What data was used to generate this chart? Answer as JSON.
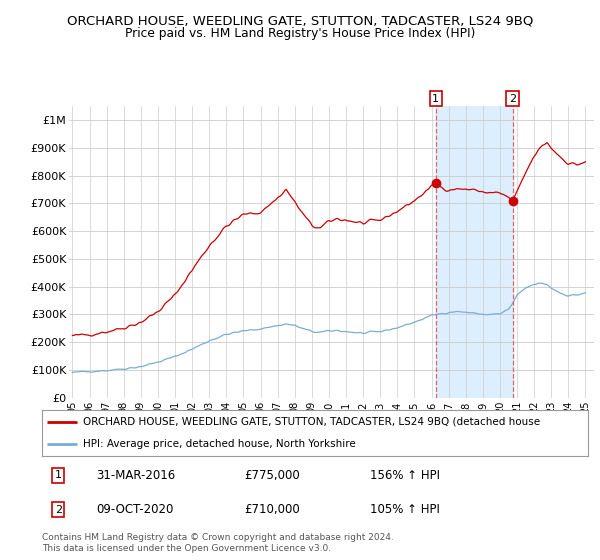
{
  "title": "ORCHARD HOUSE, WEEDLING GATE, STUTTON, TADCASTER, LS24 9BQ",
  "subtitle": "Price paid vs. HM Land Registry's House Price Index (HPI)",
  "title_fontsize": 9.5,
  "subtitle_fontsize": 8.8,
  "ylim": [
    0,
    1050000
  ],
  "yticks": [
    0,
    100000,
    200000,
    300000,
    400000,
    500000,
    600000,
    700000,
    800000,
    900000,
    1000000
  ],
  "ytick_labels": [
    "£0",
    "£100K",
    "£200K",
    "£300K",
    "£400K",
    "£500K",
    "£600K",
    "£700K",
    "£800K",
    "£900K",
    "£1M"
  ],
  "red_color": "#cc0000",
  "blue_color": "#7aadd4",
  "marker_color": "#cc0000",
  "vline_color": "#dd4444",
  "shade_color": "#ddeeff",
  "legend_house": "ORCHARD HOUSE, WEEDLING GATE, STUTTON, TADCASTER, LS24 9BQ (detached house",
  "legend_hpi": "HPI: Average price, detached house, North Yorkshire",
  "point1_date": "31-MAR-2016",
  "point1_price": "£775,000",
  "point1_pct": "156% ↑ HPI",
  "point2_date": "09-OCT-2020",
  "point2_price": "£710,000",
  "point2_pct": "105% ↑ HPI",
  "footer": "Contains HM Land Registry data © Crown copyright and database right 2024.\nThis data is licensed under the Open Government Licence v3.0.",
  "point1_x": 2016.25,
  "point1_y": 775000,
  "point2_x": 2020.75,
  "point2_y": 710000,
  "xmin": 1994.8,
  "xmax": 2025.5,
  "background_color": "#ffffff",
  "plot_bg_color": "#ffffff",
  "grid_color": "#cccccc"
}
